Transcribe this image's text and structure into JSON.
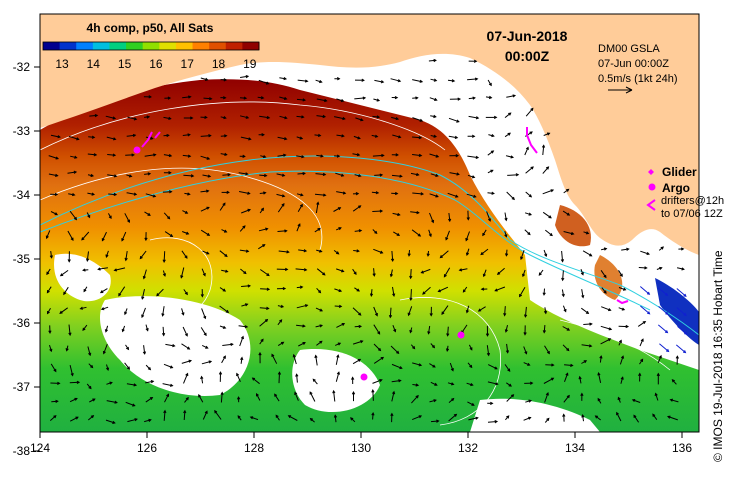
{
  "header": {
    "colorbar_title": "4h comp, p50, All Sats",
    "date_line1": "07-Jun-2018",
    "date_line2": "00:00Z"
  },
  "colorbar": {
    "ticks": [
      "13",
      "14",
      "15",
      "16",
      "17",
      "18",
      "19"
    ],
    "colors": [
      "#00008f",
      "#0033cc",
      "#0080ff",
      "#00bfe0",
      "#00d080",
      "#30d020",
      "#90e000",
      "#e0e000",
      "#ffc000",
      "#ff8000",
      "#e05000",
      "#c02000",
      "#900000"
    ]
  },
  "info_box": {
    "line1": "DM00 GSLA",
    "line2": "07-Jun 00:00Z",
    "line3": "0.5m/s (1kt 24h)"
  },
  "legend": {
    "glider_label": "Glider",
    "argo_label": "Argo",
    "drifter_line1": "drifters@12h",
    "drifter_line2": "to 07/06 12Z",
    "glider_color": "#ff00ff",
    "argo_color": "#ff00ff",
    "drifter_color": "#ff00ff"
  },
  "axes": {
    "x_ticks": [
      "124",
      "126",
      "128",
      "130",
      "132",
      "134",
      "136"
    ],
    "y_ticks": [
      "-32",
      "-33",
      "-34",
      "-35",
      "-36",
      "-37",
      "-38"
    ]
  },
  "credit": "© IMOS 19-Jul-2018 16:35 Hobart Time",
  "colors": {
    "land": "#ffcc99",
    "warm": "#a01000",
    "mid": "#e07010",
    "cool": "#40c030"
  }
}
